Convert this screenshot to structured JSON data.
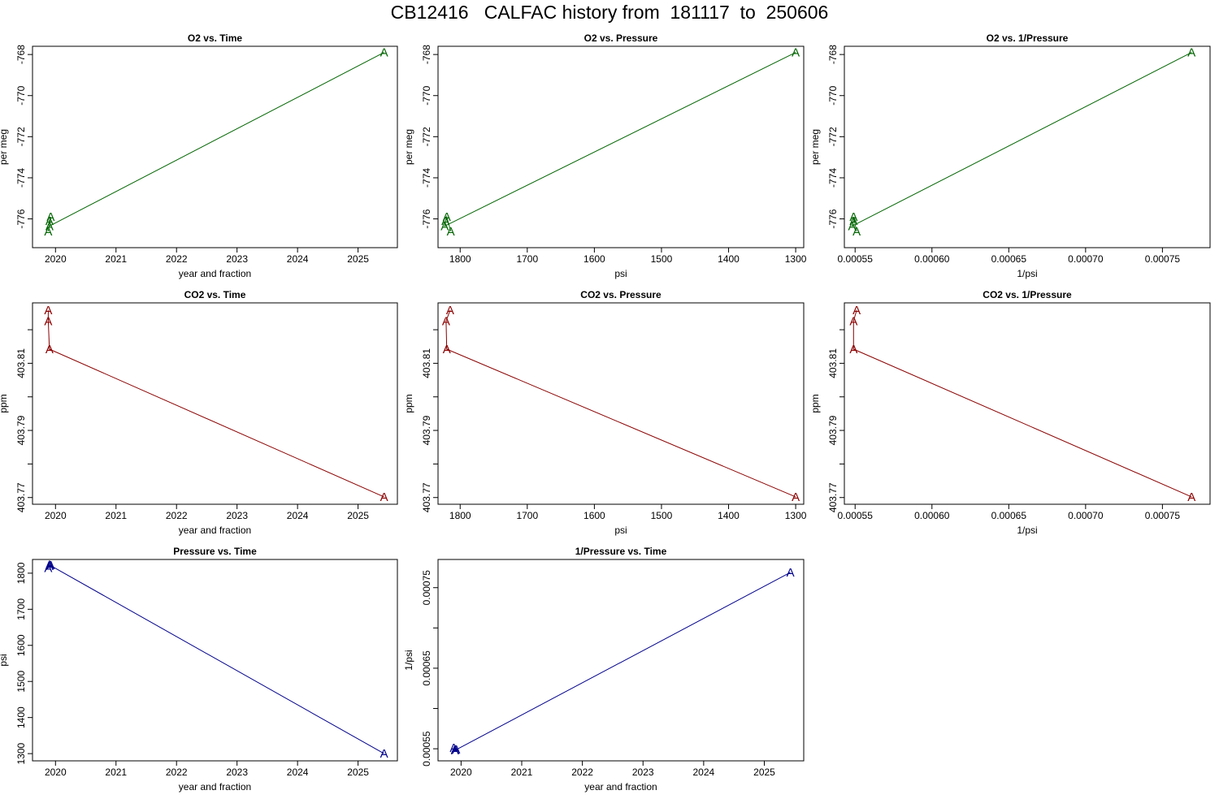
{
  "title": "CB12416   CALFAC history from  181117  to  250606",
  "marker": "A",
  "colors": {
    "o2": "#006400",
    "co2": "#8b0000",
    "pressure": "#00008b",
    "axis": "#000000"
  },
  "chart_data": [
    {
      "type": "line",
      "title": "O2 vs. Time",
      "xlabel": "year and fraction",
      "ylabel": "per meg",
      "xlim": [
        2019.62,
        2025.65
      ],
      "ylim": [
        -777.4,
        -767.6
      ],
      "xticks": [
        2020,
        2021,
        2022,
        2023,
        2024,
        2025
      ],
      "xtick_labels": [
        "2020",
        "2021",
        "2022",
        "2023",
        "2024",
        "2025"
      ],
      "yticks": [
        -776,
        -774,
        -772,
        -770,
        -768
      ],
      "ytick_labels": [
        "-776",
        "-774",
        "-772",
        "-770",
        "-768"
      ],
      "x": [
        2019.88,
        2019.92,
        2019.9,
        2019.9,
        2025.43
      ],
      "y": [
        -776.6,
        -775.9,
        -776.1,
        -776.35,
        -767.9
      ],
      "color": "o2"
    },
    {
      "type": "line",
      "title": "O2 vs. Pressure",
      "xlabel": "psi",
      "ylabel": "per meg",
      "xlim": [
        1833,
        1288
      ],
      "ylim": [
        -777.4,
        -767.6
      ],
      "xticks": [
        1800,
        1700,
        1600,
        1500,
        1400,
        1300
      ],
      "xtick_labels": [
        "1800",
        "1700",
        "1600",
        "1500",
        "1400",
        "1300"
      ],
      "yticks": [
        -776,
        -774,
        -772,
        -770,
        -768
      ],
      "ytick_labels": [
        "-776",
        "-774",
        "-772",
        "-770",
        "-768"
      ],
      "x": [
        1814,
        1820,
        1822,
        1823,
        1300
      ],
      "y": [
        -776.6,
        -775.9,
        -776.1,
        -776.35,
        -767.9
      ],
      "color": "o2"
    },
    {
      "type": "line",
      "title": "O2 vs. 1/Pressure",
      "xlabel": "1/psi",
      "ylabel": "per meg",
      "xlim": [
        0.000543,
        0.000781
      ],
      "ylim": [
        -777.4,
        -767.6
      ],
      "xticks": [
        0.00055,
        0.0006,
        0.00065,
        0.0007,
        0.00075
      ],
      "xtick_labels": [
        "0.00055",
        "0.00060",
        "0.00065",
        "0.00070",
        "0.00075"
      ],
      "yticks": [
        -776,
        -774,
        -772,
        -770,
        -768
      ],
      "ytick_labels": [
        "-776",
        "-774",
        "-772",
        "-770",
        "-768"
      ],
      "x": [
        0.000551,
        0.000549,
        0.000549,
        0.000548,
        0.000769
      ],
      "y": [
        -776.6,
        -775.9,
        -776.1,
        -776.35,
        -767.9
      ],
      "color": "o2"
    },
    {
      "type": "line",
      "title": "CO2 vs. Time",
      "xlabel": "year and fraction",
      "ylabel": "ppm",
      "xlim": [
        2019.62,
        2025.65
      ],
      "ylim": [
        403.768,
        403.828
      ],
      "xticks": [
        2020,
        2021,
        2022,
        2023,
        2024,
        2025
      ],
      "xtick_labels": [
        "2020",
        "2021",
        "2022",
        "2023",
        "2024",
        "2025"
      ],
      "yticks": [
        403.77,
        403.78,
        403.79,
        403.8,
        403.81,
        403.82
      ],
      "ytick_labels": [
        "403.77",
        "",
        "403.79",
        "",
        "403.81",
        ""
      ],
      "x": [
        2019.88,
        2019.88,
        2019.9,
        2025.43
      ],
      "y": [
        403.8258,
        403.8226,
        403.8142,
        403.7702
      ],
      "color": "co2"
    },
    {
      "type": "line",
      "title": "CO2 vs. Pressure",
      "xlabel": "psi",
      "ylabel": "ppm",
      "xlim": [
        1833,
        1288
      ],
      "ylim": [
        403.768,
        403.828
      ],
      "xticks": [
        1800,
        1700,
        1600,
        1500,
        1400,
        1300
      ],
      "xtick_labels": [
        "1800",
        "1700",
        "1600",
        "1500",
        "1400",
        "1300"
      ],
      "yticks": [
        403.77,
        403.78,
        403.79,
        403.8,
        403.81,
        403.82
      ],
      "ytick_labels": [
        "403.77",
        "",
        "403.79",
        "",
        "403.81",
        ""
      ],
      "x": [
        1815,
        1821,
        1820,
        1300
      ],
      "y": [
        403.8258,
        403.8226,
        403.8142,
        403.7702
      ],
      "color": "co2"
    },
    {
      "type": "line",
      "title": "CO2 vs. 1/Pressure",
      "xlabel": "1/psi",
      "ylabel": "ppm",
      "xlim": [
        0.000543,
        0.000781
      ],
      "ylim": [
        403.768,
        403.828
      ],
      "xticks": [
        0.00055,
        0.0006,
        0.00065,
        0.0007,
        0.00075
      ],
      "xtick_labels": [
        "0.00055",
        "0.00060",
        "0.00065",
        "0.00070",
        "0.00075"
      ],
      "yticks": [
        403.77,
        403.78,
        403.79,
        403.8,
        403.81,
        403.82
      ],
      "ytick_labels": [
        "403.77",
        "",
        "403.79",
        "",
        "403.81",
        ""
      ],
      "x": [
        0.000551,
        0.000549,
        0.000549,
        0.000769
      ],
      "y": [
        403.8258,
        403.8226,
        403.8142,
        403.7702
      ],
      "color": "co2"
    },
    {
      "type": "line",
      "title": "Pressure vs. Time",
      "xlabel": "year and fraction",
      "ylabel": "psi",
      "xlim": [
        2019.62,
        2025.65
      ],
      "ylim": [
        1280,
        1838
      ],
      "xticks": [
        2020,
        2021,
        2022,
        2023,
        2024,
        2025
      ],
      "xtick_labels": [
        "2020",
        "2021",
        "2022",
        "2023",
        "2024",
        "2025"
      ],
      "yticks": [
        1300,
        1400,
        1500,
        1600,
        1700,
        1800
      ],
      "ytick_labels": [
        "1300",
        "1400",
        "1500",
        "1600",
        "1700",
        "1800"
      ],
      "x": [
        2019.88,
        2019.9,
        2019.92,
        2019.9,
        2025.43
      ],
      "y": [
        1814,
        1820,
        1822,
        1823,
        1300
      ],
      "color": "pressure"
    },
    {
      "type": "line",
      "title": "1/Pressure vs. Time",
      "xlabel": "year and fraction",
      "ylabel": "1/psi",
      "xlim": [
        2019.62,
        2025.65
      ],
      "ylim": [
        0.000535,
        0.000785
      ],
      "xticks": [
        2020,
        2021,
        2022,
        2023,
        2024,
        2025
      ],
      "xtick_labels": [
        "2020",
        "2021",
        "2022",
        "2023",
        "2024",
        "2025"
      ],
      "yticks": [
        0.00055,
        0.0006,
        0.00065,
        0.0007,
        0.00075
      ],
      "ytick_labels": [
        "0.00055",
        "",
        "0.00065",
        "",
        "0.00075"
      ],
      "x": [
        2019.88,
        2019.9,
        2019.92,
        2019.9,
        2025.43
      ],
      "y": [
        0.000551,
        0.000549,
        0.000549,
        0.000548,
        0.000769
      ],
      "color": "pressure"
    }
  ]
}
